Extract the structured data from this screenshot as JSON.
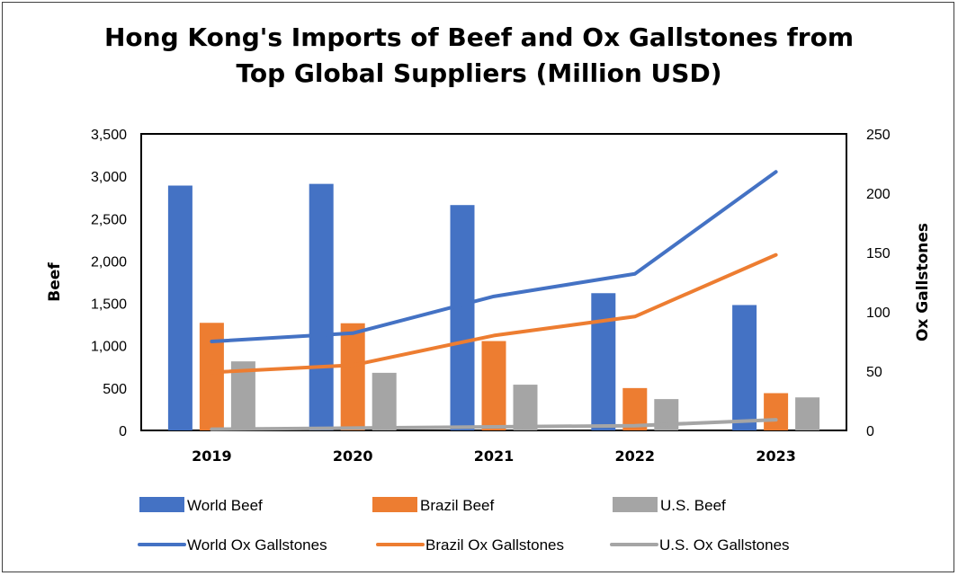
{
  "chart_data": {
    "type": "bar",
    "title": "Hong Kong's Imports of Beef and Ox Gallstones from Top Global Suppliers (Million USD)",
    "title_lines": [
      "Hong Kong's Imports of Beef and Ox Gallstones from",
      "Top Global Suppliers (Million USD)"
    ],
    "categories": [
      "2019",
      "2020",
      "2021",
      "2022",
      "2023"
    ],
    "y_left": {
      "label": "Beef",
      "ylim": [
        0,
        3500
      ],
      "ticks": [
        "0",
        "500",
        "1,000",
        "1,500",
        "2,000",
        "2,500",
        "3,000",
        "3,500"
      ],
      "tick_values": [
        0,
        500,
        1000,
        1500,
        2000,
        2500,
        3000,
        3500
      ]
    },
    "y_right": {
      "label": "Ox Gallstones",
      "ylim": [
        0,
        250
      ],
      "ticks": [
        "0",
        "50",
        "100",
        "150",
        "200",
        "250"
      ],
      "tick_values": [
        0,
        50,
        100,
        150,
        200,
        250
      ]
    },
    "bar_series": [
      {
        "name": "World Beef",
        "color": "#4472C4",
        "values": [
          2890,
          2910,
          2660,
          1620,
          1480
        ]
      },
      {
        "name": "Brazil Beef",
        "color": "#ED7D31",
        "values": [
          1270,
          1265,
          1055,
          500,
          440
        ]
      },
      {
        "name": "U.S. Beef",
        "color": "#A5A5A5",
        "values": [
          815,
          680,
          540,
          370,
          390
        ]
      }
    ],
    "line_series": [
      {
        "name": "World Ox Gallstones",
        "color": "#4472C4",
        "axis": "right",
        "values": [
          75,
          82,
          113,
          132,
          218
        ]
      },
      {
        "name": "Brazil Ox Gallstones",
        "color": "#ED7D31",
        "axis": "right",
        "values": [
          49,
          55,
          80,
          96,
          148
        ]
      },
      {
        "name": "U.S. Ox Gallstones",
        "color": "#A5A5A5",
        "axis": "right",
        "values": [
          1,
          2,
          3,
          4,
          9
        ]
      }
    ],
    "legend_placement": "bottom",
    "grid": false
  }
}
